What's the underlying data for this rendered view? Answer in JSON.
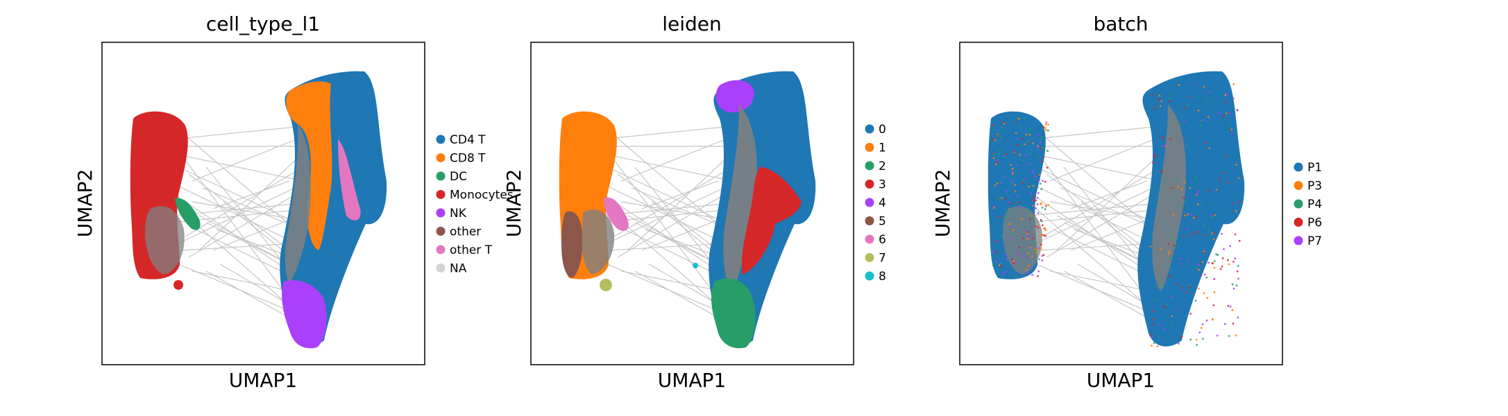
{
  "chart_data": [
    {
      "type": "scatter",
      "title": "cell_type_l1",
      "xlabel": "UMAP1",
      "ylabel": "UMAP2",
      "legend_position": "right",
      "series": [
        {
          "name": "CD4 T",
          "color": "#1f77b4"
        },
        {
          "name": "CD8 T",
          "color": "#ff7f0e"
        },
        {
          "name": "DC",
          "color": "#279e68"
        },
        {
          "name": "Monocytes",
          "color": "#d62728"
        },
        {
          "name": "NK",
          "color": "#aa40fc"
        },
        {
          "name": "other",
          "color": "#8c564b"
        },
        {
          "name": "other T",
          "color": "#e377c2"
        },
        {
          "name": "NA",
          "color": "#d3d3d3"
        }
      ]
    },
    {
      "type": "scatter",
      "title": "leiden",
      "xlabel": "UMAP1",
      "ylabel": "UMAP2",
      "legend_position": "right",
      "series": [
        {
          "name": "0",
          "color": "#1f77b4"
        },
        {
          "name": "1",
          "color": "#ff7f0e"
        },
        {
          "name": "2",
          "color": "#279e68"
        },
        {
          "name": "3",
          "color": "#d62728"
        },
        {
          "name": "4",
          "color": "#aa40fc"
        },
        {
          "name": "5",
          "color": "#8c564b"
        },
        {
          "name": "6",
          "color": "#e377c2"
        },
        {
          "name": "7",
          "color": "#b5bd61"
        },
        {
          "name": "8",
          "color": "#17becf"
        }
      ]
    },
    {
      "type": "scatter",
      "title": "batch",
      "xlabel": "UMAP1",
      "ylabel": "UMAP2",
      "legend_position": "right",
      "series": [
        {
          "name": "P1",
          "color": "#1f77b4"
        },
        {
          "name": "P3",
          "color": "#ff7f0e"
        },
        {
          "name": "P4",
          "color": "#279e68"
        },
        {
          "name": "P6",
          "color": "#d62728"
        },
        {
          "name": "P7",
          "color": "#aa40fc"
        }
      ]
    }
  ],
  "graph_edge_color": "#808080"
}
